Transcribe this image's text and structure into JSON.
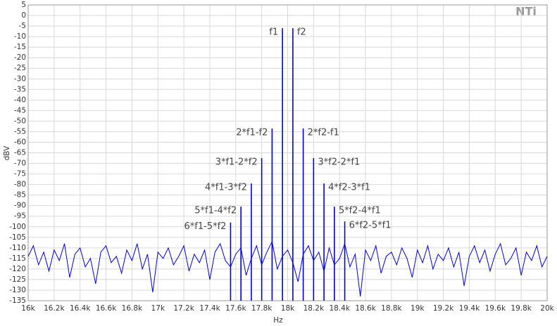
{
  "chart_data": {
    "type": "line",
    "logo": "NTi",
    "xlabel": "Hz",
    "ylabel": "dBV",
    "xlim": [
      16000,
      20000
    ],
    "ylim": [
      -135,
      5
    ],
    "grid": true,
    "xticks": [
      {
        "value": 16000,
        "label": "16k"
      },
      {
        "value": 16200,
        "label": "16.2k"
      },
      {
        "value": 16400,
        "label": "16.4k"
      },
      {
        "value": 16600,
        "label": "16.6k"
      },
      {
        "value": 16800,
        "label": "16.8k"
      },
      {
        "value": 17000,
        "label": "17k"
      },
      {
        "value": 17200,
        "label": "17.2k"
      },
      {
        "value": 17400,
        "label": "17.4k"
      },
      {
        "value": 17600,
        "label": "17.6k"
      },
      {
        "value": 17800,
        "label": "17.8k"
      },
      {
        "value": 18000,
        "label": "18k"
      },
      {
        "value": 18200,
        "label": "18.2k"
      },
      {
        "value": 18400,
        "label": "18.4k"
      },
      {
        "value": 18600,
        "label": "18.6k"
      },
      {
        "value": 18800,
        "label": "18.8k"
      },
      {
        "value": 19000,
        "label": "19k"
      },
      {
        "value": 19200,
        "label": "19.2k"
      },
      {
        "value": 19400,
        "label": "19.4k"
      },
      {
        "value": 19600,
        "label": "19.6k"
      },
      {
        "value": 19800,
        "label": "19.8k"
      },
      {
        "value": 20000,
        "label": "20k"
      }
    ],
    "yticks": [
      5,
      0,
      -5,
      -10,
      -15,
      -20,
      -25,
      -30,
      -35,
      -40,
      -45,
      -50,
      -55,
      -60,
      -65,
      -70,
      -75,
      -80,
      -85,
      -90,
      -95,
      -100,
      -105,
      -110,
      -115,
      -120,
      -125,
      -130,
      -135
    ],
    "color": "#0000dd",
    "x": [
      16000,
      16040,
      16080,
      16120,
      16160,
      16200,
      16240,
      16280,
      16320,
      16360,
      16400,
      16440,
      16480,
      16520,
      16560,
      16600,
      16640,
      16680,
      16720,
      16760,
      16800,
      16840,
      16880,
      16920,
      16960,
      17000,
      17040,
      17080,
      17120,
      17160,
      17200,
      17240,
      17280,
      17320,
      17360,
      17400,
      17440,
      17480,
      17520,
      17560,
      17600,
      17640,
      17680,
      17720,
      17760,
      17800,
      17840,
      17880,
      17920,
      17960,
      18000,
      18040,
      18080,
      18120,
      18160,
      18200,
      18240,
      18280,
      18320,
      18360,
      18400,
      18440,
      18480,
      18520,
      18560,
      18600,
      18640,
      18680,
      18720,
      18760,
      18800,
      18840,
      18880,
      18920,
      18960,
      19000,
      19040,
      19080,
      19120,
      19160,
      19200,
      19240,
      19280,
      19320,
      19360,
      19400,
      19440,
      19480,
      19520,
      19560,
      19600,
      19640,
      19680,
      19720,
      19760,
      19800,
      19840,
      19880,
      19920,
      19960,
      20000
    ],
    "values": [
      -114,
      -109,
      -118,
      -112,
      -121,
      -111,
      -116,
      -108,
      -124,
      -113,
      -110,
      -119,
      -115,
      -127,
      -112,
      -109,
      -117,
      -114,
      -122,
      -111,
      -116,
      -108,
      -120,
      -113,
      -131,
      -112,
      -115,
      -110,
      -118,
      -114,
      -109,
      -121,
      -113,
      -117,
      -111,
      -125,
      -112,
      -108,
      -116,
      -119,
      -113,
      -110,
      -123,
      -115,
      -109,
      -118,
      -112,
      -107,
      -120,
      -114,
      -111,
      -117,
      -126,
      -113,
      -109,
      -116,
      -112,
      -121,
      -110,
      -118,
      -115,
      -108,
      -119,
      -113,
      -133,
      -111,
      -116,
      -109,
      -122,
      -114,
      -112,
      -118,
      -110,
      -115,
      -124,
      -111,
      -117,
      -109,
      -120,
      -113,
      -116,
      -110,
      -119,
      -112,
      -128,
      -114,
      -109,
      -117,
      -111,
      -121,
      -113,
      -108,
      -118,
      -115,
      -110,
      -123,
      -112,
      -116,
      -109,
      -119,
      -114
    ],
    "peaks": [
      {
        "name": "f1",
        "x": 17960,
        "value": -6
      },
      {
        "name": "f2",
        "x": 18040,
        "value": -6
      },
      {
        "name": "2*f1-f2",
        "x": 17880,
        "value": -53.5
      },
      {
        "name": "2*f2-f1",
        "x": 18120,
        "value": -53.5
      },
      {
        "name": "3*f1-2*f2",
        "x": 17800,
        "value": -67.5
      },
      {
        "name": "3*f2-2*f1",
        "x": 18200,
        "value": -67.5
      },
      {
        "name": "4*f1-3*f2",
        "x": 17720,
        "value": -79.5
      },
      {
        "name": "4*f2-3*f1",
        "x": 18280,
        "value": -79.5
      },
      {
        "name": "5*f1-4*f2",
        "x": 17640,
        "value": -90.5
      },
      {
        "name": "5*f2-4*f1",
        "x": 18360,
        "value": -90.5
      },
      {
        "name": "6*f1-5*f2",
        "x": 17560,
        "value": -98
      },
      {
        "name": "6*f2-5*f1",
        "x": 18440,
        "value": -97.5
      }
    ]
  }
}
